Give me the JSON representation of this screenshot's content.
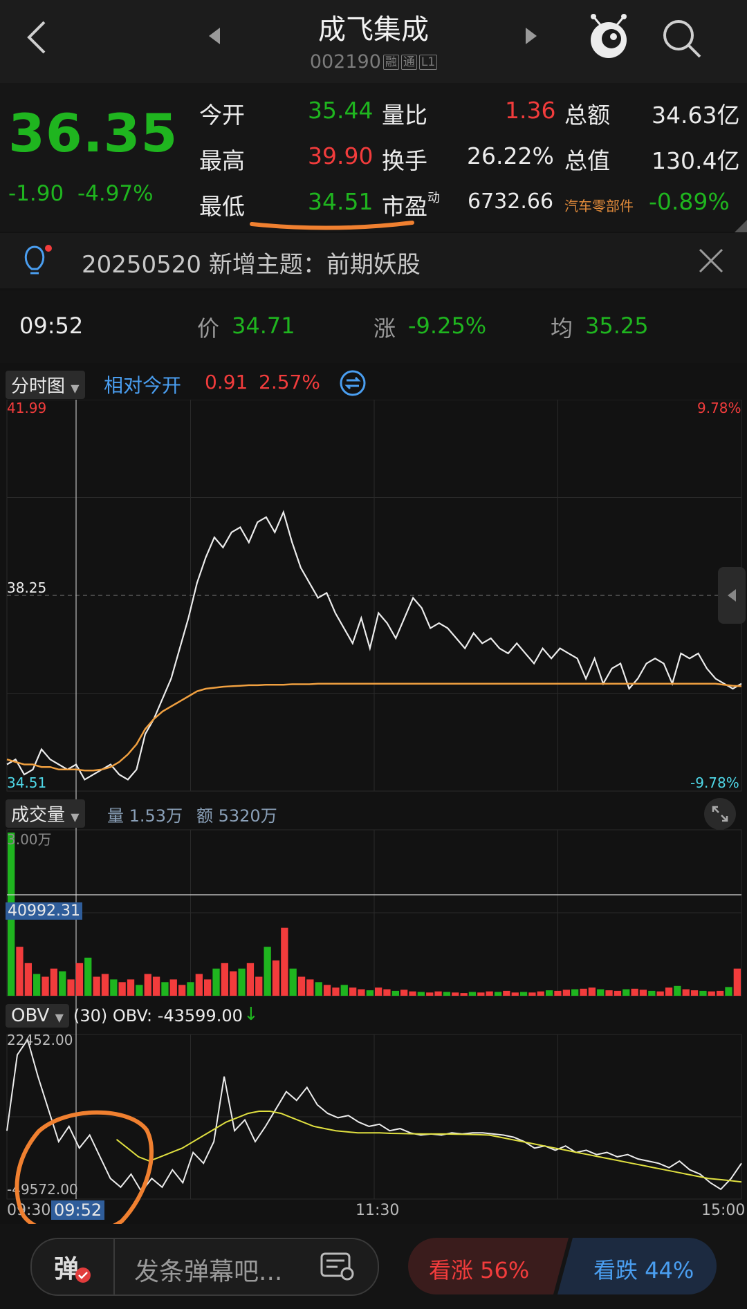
{
  "header": {
    "title": "成飞集成",
    "code": "002190",
    "tags": [
      "融",
      "通",
      "L1"
    ]
  },
  "quote": {
    "price": "36.35",
    "change": "-1.90",
    "change_pct": "-4.97%",
    "rows": [
      {
        "k1": "今开",
        "v1": "35.44",
        "k2": "量比",
        "v2": "1.36",
        "k3": "总额",
        "v3": "34.63亿"
      },
      {
        "k1": "最高",
        "v1": "39.90",
        "k2": "换手",
        "v2": "26.22%",
        "k3": "总值",
        "v3": "130.4亿"
      },
      {
        "k1": "最低",
        "v1": "34.51",
        "k2": "市盈",
        "k2_sup": "动",
        "v2": "6732.66",
        "k3": "汽车零部件",
        "v3": "-0.89%"
      }
    ]
  },
  "notice": {
    "text": "20250520 新增主题：前期妖股"
  },
  "crosshair": {
    "time": "09:52",
    "price_label": "价",
    "price": "34.71",
    "change_label": "涨",
    "change": "-9.25%",
    "avg_label": "均",
    "avg": "35.25"
  },
  "chart_tabs": {
    "mode": "分时图",
    "relative_label": "相对今开",
    "relative_value": "0.91",
    "relative_pct": "2.57%"
  },
  "price_axis": {
    "top": "41.99",
    "mid": "38.25",
    "bottom": "34.51",
    "top_pct": "9.78%",
    "bottom_pct": "-9.78%"
  },
  "volume_panel": {
    "mode": "成交量",
    "vol_label": "量 1.53万",
    "amt_label": "额 5320万",
    "top": "3.00万",
    "crosshair_value": "40992.31"
  },
  "obv_panel": {
    "mode": "OBV",
    "label": "(30) OBV: -43599.00",
    "arrow": "↓",
    "top": "22452.00",
    "bottom": "-49572.00"
  },
  "time_axis": {
    "start": "09:30",
    "mid": "11:30",
    "end": "15:00",
    "crosshair": "09:52"
  },
  "bottom_bar": {
    "danmu_icon": "弹",
    "placeholder": "发条弹幕吧...",
    "bull_label": "看涨 56%",
    "bear_label": "看跌 44%"
  },
  "colors": {
    "up": "#f23c3c",
    "down": "#1fb51f",
    "avg_line": "#f0a040",
    "obv_ma": "#e0e040",
    "annotation": "#f08030"
  },
  "chart_data": [
    {
      "type": "line",
      "title": "分时图",
      "ylim": [
        34.51,
        41.99
      ],
      "series": [
        {
          "values": [
            34.9,
            35.0,
            34.7,
            34.8,
            35.2,
            35.0,
            34.9,
            34.8,
            34.9,
            34.6,
            34.7,
            34.8,
            34.9,
            34.7,
            34.6,
            34.8,
            35.5,
            35.8,
            36.2,
            36.6,
            37.2,
            37.8,
            38.5,
            39.0,
            39.4,
            39.2,
            39.5,
            39.6,
            39.3,
            39.7,
            39.8,
            39.5,
            39.9,
            39.3,
            38.8,
            38.5,
            38.2,
            38.3,
            37.9,
            37.6,
            37.3,
            37.8,
            37.2,
            37.9,
            37.7,
            37.4,
            37.8,
            38.2,
            38.0,
            37.6,
            37.7,
            37.6,
            37.4,
            37.2,
            37.5,
            37.3,
            37.4,
            37.2,
            37.1,
            37.3,
            37.1,
            36.9,
            37.2,
            37.0,
            37.2,
            37.1,
            37.0,
            36.6,
            37.0,
            36.5,
            36.8,
            36.9,
            36.4,
            36.6,
            36.9,
            37.0,
            36.9,
            36.5,
            37.1,
            37.0,
            37.1,
            36.8,
            36.6,
            36.5,
            36.4,
            36.5
          ]
        },
        {
          "values": [
            35.0,
            34.95,
            34.9,
            34.9,
            34.85,
            34.85,
            34.8,
            34.8,
            34.8,
            34.78,
            34.78,
            34.8,
            34.85,
            34.95,
            35.1,
            35.3,
            35.6,
            35.8,
            35.95,
            36.05,
            36.15,
            36.25,
            36.35,
            36.4,
            36.42,
            36.44,
            36.45,
            36.46,
            36.47,
            36.47,
            36.48,
            36.48,
            36.48,
            36.49,
            36.49,
            36.49,
            36.5,
            36.5,
            36.5,
            36.5,
            36.5,
            36.5,
            36.5,
            36.5,
            36.5,
            36.5,
            36.5,
            36.5,
            36.5,
            36.5,
            36.5,
            36.5,
            36.5,
            36.5,
            36.5,
            36.5,
            36.5,
            36.5,
            36.5,
            36.5,
            36.5,
            36.5,
            36.5,
            36.5,
            36.5,
            36.5,
            36.5,
            36.5,
            36.5,
            36.5,
            36.5,
            36.5,
            36.5,
            36.5,
            36.5,
            36.5,
            36.5,
            36.5,
            36.5,
            36.5,
            36.5,
            36.5,
            36.5,
            36.48,
            36.46,
            36.45
          ]
        }
      ]
    },
    {
      "type": "bar",
      "title": "成交量",
      "ylim": [
        0,
        30000
      ],
      "values": [
        30000,
        9000,
        6000,
        4000,
        3500,
        5000,
        4500,
        3000,
        6000,
        7000,
        3500,
        4000,
        3000,
        2500,
        3000,
        2000,
        4000,
        3500,
        2500,
        3000,
        2000,
        2500,
        4000,
        3000,
        5000,
        6000,
        4500,
        5000,
        6000,
        3500,
        9000,
        6500,
        12500,
        5000,
        3500,
        3000,
        2500,
        2000,
        1500,
        2000,
        1500,
        1200,
        1000,
        1500,
        1200,
        900,
        1100,
        800,
        700,
        600,
        800,
        700,
        600,
        500,
        700,
        600,
        800,
        700,
        900,
        600,
        700,
        600,
        800,
        1000,
        900,
        1100,
        1200,
        1300,
        1500,
        1200,
        1000,
        900,
        1200,
        1300,
        1100,
        900,
        800,
        1500,
        1800,
        1200,
        1000,
        900,
        800,
        900,
        1600,
        5000
      ]
    },
    {
      "type": "line",
      "title": "OBV",
      "ylim": [
        -49572,
        22452
      ],
      "series": [
        {
          "values": [
            -20000,
            15000,
            22000,
            5000,
            -10000,
            -25000,
            -18000,
            -28000,
            -22000,
            -32000,
            -42000,
            -46000,
            -40000,
            -48000,
            -42000,
            -46000,
            -38000,
            -44000,
            -30000,
            -35000,
            -25000,
            5000,
            -20000,
            -15000,
            -25000,
            -18000,
            -10000,
            -2000,
            -6000,
            0,
            -8000,
            -12000,
            -14000,
            -13000,
            -16000,
            -18000,
            -17000,
            -20000,
            -19000,
            -21000,
            -22000,
            -21500,
            -22000,
            -21000,
            -21500,
            -21000,
            -21000,
            -21500,
            -22000,
            -23000,
            -25000,
            -28000,
            -27000,
            -29000,
            -27000,
            -30000,
            -29000,
            -31000,
            -30000,
            -32000,
            -31000,
            -33000,
            -34000,
            -35000,
            -37000,
            -34000,
            -38000,
            -40000,
            -44000,
            -47000,
            -42000,
            -35000
          ]
        },
        {
          "values": [
            null,
            null,
            null,
            null,
            null,
            null,
            null,
            null,
            null,
            null,
            -24000,
            -28000,
            -32000,
            -34000,
            -32000,
            -30000,
            -28000,
            -25000,
            -22000,
            -19000,
            -16000,
            -14000,
            -12000,
            -11000,
            -11000,
            -12000,
            -14000,
            -16000,
            -18000,
            -19000,
            -20000,
            -20500,
            -21000,
            -21000,
            -21000,
            -21200,
            -21300,
            -21400,
            -21500,
            -21500,
            -21500,
            -21600,
            -21700,
            -21800,
            -22000,
            -23000,
            -24000,
            -25000,
            -26000,
            -27000,
            -28000,
            -29000,
            -30000,
            -31000,
            -32000,
            -33000,
            -34000,
            -35000,
            -36000,
            -37000,
            -38000,
            -39000,
            -40000,
            -41000,
            -42000,
            -42500,
            -43000,
            -43599
          ]
        }
      ]
    }
  ]
}
